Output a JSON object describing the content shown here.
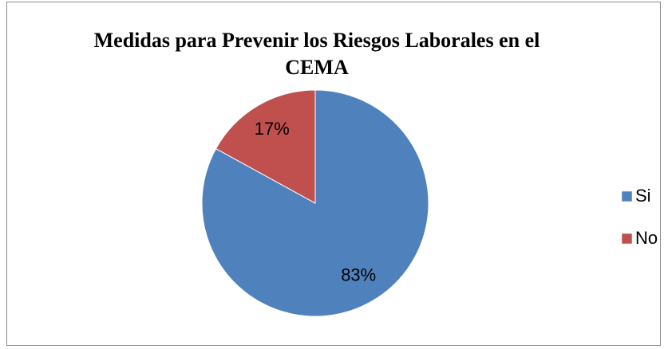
{
  "chart_data": {
    "type": "pie",
    "title": "Medidas para Prevenir los Riesgos Laborales en el CEMA",
    "categories": [
      "Si",
      "No"
    ],
    "values": [
      83,
      17
    ],
    "value_labels": [
      "83%",
      "17%"
    ],
    "colors": [
      "#4f81bd",
      "#c0504d"
    ],
    "legend": "right"
  }
}
